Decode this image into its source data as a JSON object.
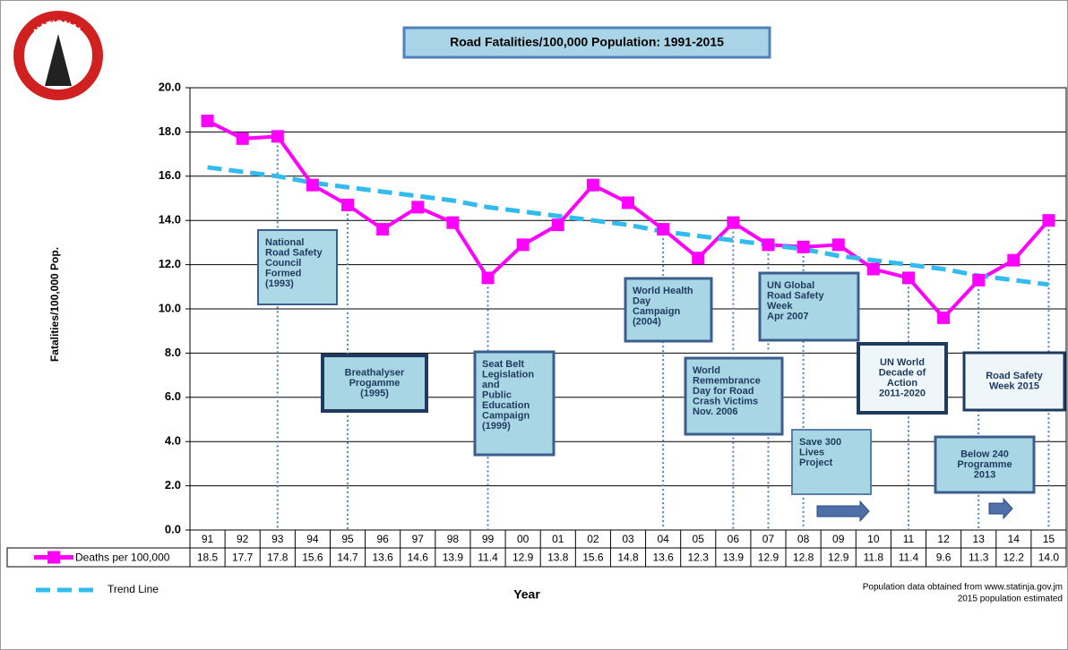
{
  "chart_data": {
    "type": "line",
    "title": "Road Fatalities/100,000 Population: 1991-2015",
    "logo": {
      "top": "NATIONAL",
      "bottom": "ROAD SAFETY COUNCIL"
    },
    "x_label": "Year",
    "y_label": "Fatalities/100,000 Pop.",
    "categories": [
      "91",
      "92",
      "93",
      "94",
      "95",
      "96",
      "97",
      "98",
      "99",
      "00",
      "01",
      "02",
      "03",
      "04",
      "05",
      "06",
      "07",
      "08",
      "09",
      "10",
      "11",
      "12",
      "13",
      "14",
      "15"
    ],
    "series": [
      {
        "name": "Deaths per 100,000",
        "color": "#ff00ff",
        "values": [
          18.5,
          17.7,
          17.8,
          15.6,
          14.7,
          13.6,
          14.6,
          13.9,
          11.4,
          12.9,
          13.8,
          15.6,
          14.8,
          13.6,
          12.3,
          13.9,
          12.9,
          12.8,
          12.9,
          11.8,
          11.4,
          9.6,
          11.3,
          12.2,
          14.0
        ],
        "value_labels": [
          "18.5",
          "17.7",
          "17.8",
          "15.6",
          "14.7",
          "13.6",
          "14.6",
          "13.9",
          "11.4",
          "12.9",
          "13.8",
          "15.6",
          "14.8",
          "13.6",
          "12.3",
          "13.9",
          "12.9",
          "12.8",
          "12.9",
          "11.8",
          "11.4",
          "9.6",
          "11.3",
          "12.2",
          "14.0"
        ]
      },
      {
        "name": "Trend Line",
        "color": "#33bbee",
        "dashed": true,
        "values": [
          16.4,
          16.2,
          16.0,
          15.7,
          15.5,
          15.3,
          15.1,
          14.9,
          14.6,
          14.4,
          14.2,
          14.0,
          13.8,
          13.5,
          13.3,
          13.1,
          12.9,
          12.7,
          12.4,
          12.2,
          12.0,
          11.8,
          11.5,
          11.3,
          11.1
        ]
      }
    ],
    "ylim": [
      0,
      20
    ],
    "yticks": [
      {
        "value": 0,
        "label": "0.0"
      },
      {
        "value": 2,
        "label": "2.0"
      },
      {
        "value": 4,
        "label": "4.0"
      },
      {
        "value": 6,
        "label": "6.0"
      },
      {
        "value": 8,
        "label": "8.0"
      },
      {
        "value": 10,
        "label": "10.0"
      },
      {
        "value": 12,
        "label": "12.0"
      },
      {
        "value": 14,
        "label": "14.0"
      },
      {
        "value": 16,
        "label": "16.0"
      },
      {
        "value": 18,
        "label": "18.0"
      },
      {
        "value": 20,
        "label": "20.0"
      }
    ],
    "grid": true,
    "annotations": [
      {
        "lines": [
          "National",
          "Road Safety",
          "Council",
          "Formed",
          "(1993)"
        ]
      },
      {
        "lines": [
          "Breathalyser",
          "Progamme",
          "(1995)"
        ]
      },
      {
        "lines": [
          "Seat Belt",
          "Legislation",
          "and",
          "Public",
          "Education",
          "Campaign",
          "(1999)"
        ]
      },
      {
        "lines": [
          "World Health",
          "Day",
          "Campaign",
          "(2004)"
        ]
      },
      {
        "lines": [
          "World",
          "Remembrance",
          "Day for Road",
          "Crash Victims",
          "Nov. 2006"
        ]
      },
      {
        "lines": [
          "UN Global",
          "Road Safety",
          "Week",
          "Apr 2007"
        ]
      },
      {
        "lines": [
          "UN World",
          "Decade of",
          "Action",
          "2011-2020"
        ]
      },
      {
        "lines": [
          "Road  Safety",
          "Week 2015"
        ]
      },
      {
        "lines": [
          "Save 300",
          "Lives",
          "Project"
        ]
      },
      {
        "lines": [
          "Below 240",
          "Programme",
          "2013"
        ]
      }
    ],
    "source": [
      "Population data obtained from www.statinja.gov.jm",
      "2015 population estimated"
    ]
  }
}
